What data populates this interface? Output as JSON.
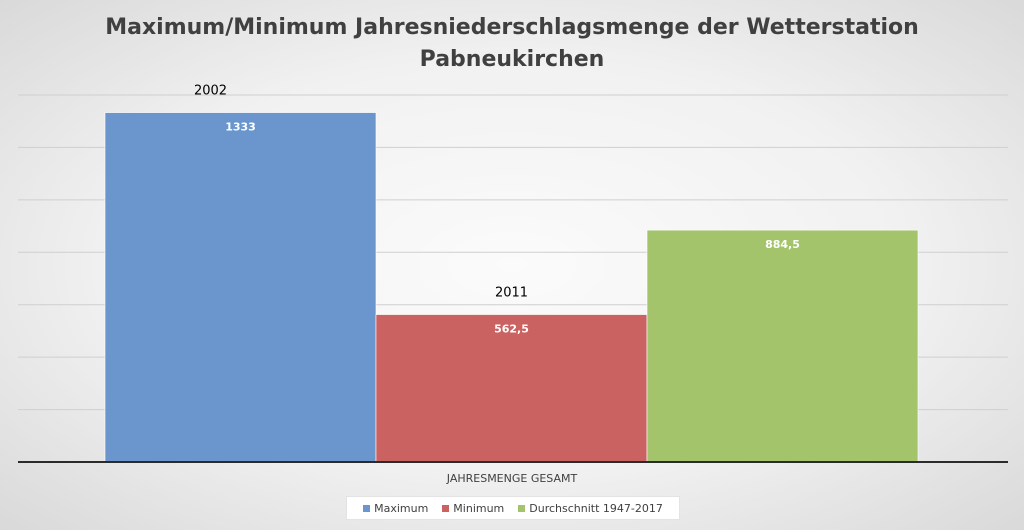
{
  "chart_data": {
    "type": "bar",
    "title_lines": [
      "Maximum/Minimum Jahresniederschlagsmenge der Wetterstation",
      "Pabneukirchen"
    ],
    "categories": [
      "JAHRESMENGE GESAMT"
    ],
    "series": [
      {
        "name": "Maximum",
        "values": [
          1333
        ],
        "value_label": "1333",
        "annotation": "2002",
        "color": "#6a96cd"
      },
      {
        "name": "Minimum",
        "values": [
          562.5
        ],
        "value_label": "562,5",
        "annotation": "2011",
        "color": "#cb6262"
      },
      {
        "name": "Durchschnitt 1947-2017",
        "values": [
          884.5
        ],
        "value_label": "884,5",
        "annotation": "",
        "color": "#a4c46b"
      }
    ],
    "ylim": [
      0,
      1400
    ],
    "ygrid_step": 200,
    "grid": true,
    "legend_position": "bottom"
  }
}
